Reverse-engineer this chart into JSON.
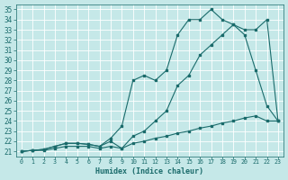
{
  "bg_color": "#c5e8e8",
  "grid_color": "#b0d8d8",
  "line_color": "#1a6b6b",
  "xlim": [
    -0.5,
    23.5
  ],
  "ylim": [
    20.5,
    35.5
  ],
  "xticks": [
    0,
    1,
    2,
    3,
    4,
    5,
    6,
    7,
    8,
    9,
    10,
    11,
    12,
    13,
    14,
    15,
    16,
    17,
    18,
    19,
    20,
    21,
    22,
    23
  ],
  "yticks": [
    21,
    22,
    23,
    24,
    25,
    26,
    27,
    28,
    29,
    30,
    31,
    32,
    33,
    34,
    35
  ],
  "xlabel": "Humidex (Indice chaleur)",
  "line1_x": [
    0,
    1,
    2,
    3,
    4,
    5,
    6,
    7,
    8,
    9,
    10,
    11,
    12,
    13,
    14,
    15,
    16,
    17,
    18,
    19,
    20,
    21,
    22,
    23
  ],
  "line1_y": [
    21,
    21.1,
    21.2,
    21.5,
    21.8,
    21.8,
    21.7,
    21.5,
    22.0,
    21.3,
    22.5,
    23.0,
    24.0,
    25.0,
    27.5,
    28.5,
    30.5,
    31.5,
    32.5,
    33.5,
    33.0,
    33.0,
    34.0,
    24.0
  ],
  "line2_x": [
    0,
    1,
    2,
    3,
    4,
    5,
    6,
    7,
    8,
    9,
    10,
    11,
    12,
    13,
    14,
    15,
    16,
    17,
    18,
    19,
    20,
    21,
    22,
    23
  ],
  "line2_y": [
    21,
    21.1,
    21.2,
    21.5,
    21.8,
    21.8,
    21.7,
    21.5,
    22.3,
    23.5,
    28.0,
    28.5,
    28.0,
    29.0,
    32.5,
    34.0,
    34.0,
    35.0,
    34.0,
    33.5,
    32.5,
    29.0,
    25.5,
    24.0
  ],
  "line3_x": [
    0,
    1,
    2,
    3,
    4,
    5,
    6,
    7,
    8,
    9,
    10,
    11,
    12,
    13,
    14,
    15,
    16,
    17,
    18,
    19,
    20,
    21,
    22,
    23
  ],
  "line3_y": [
    21,
    21.1,
    21.1,
    21.3,
    21.5,
    21.5,
    21.5,
    21.3,
    21.5,
    21.3,
    21.8,
    22.0,
    22.3,
    22.5,
    22.8,
    23.0,
    23.3,
    23.5,
    23.8,
    24.0,
    24.3,
    24.5,
    24.0,
    24.0
  ]
}
